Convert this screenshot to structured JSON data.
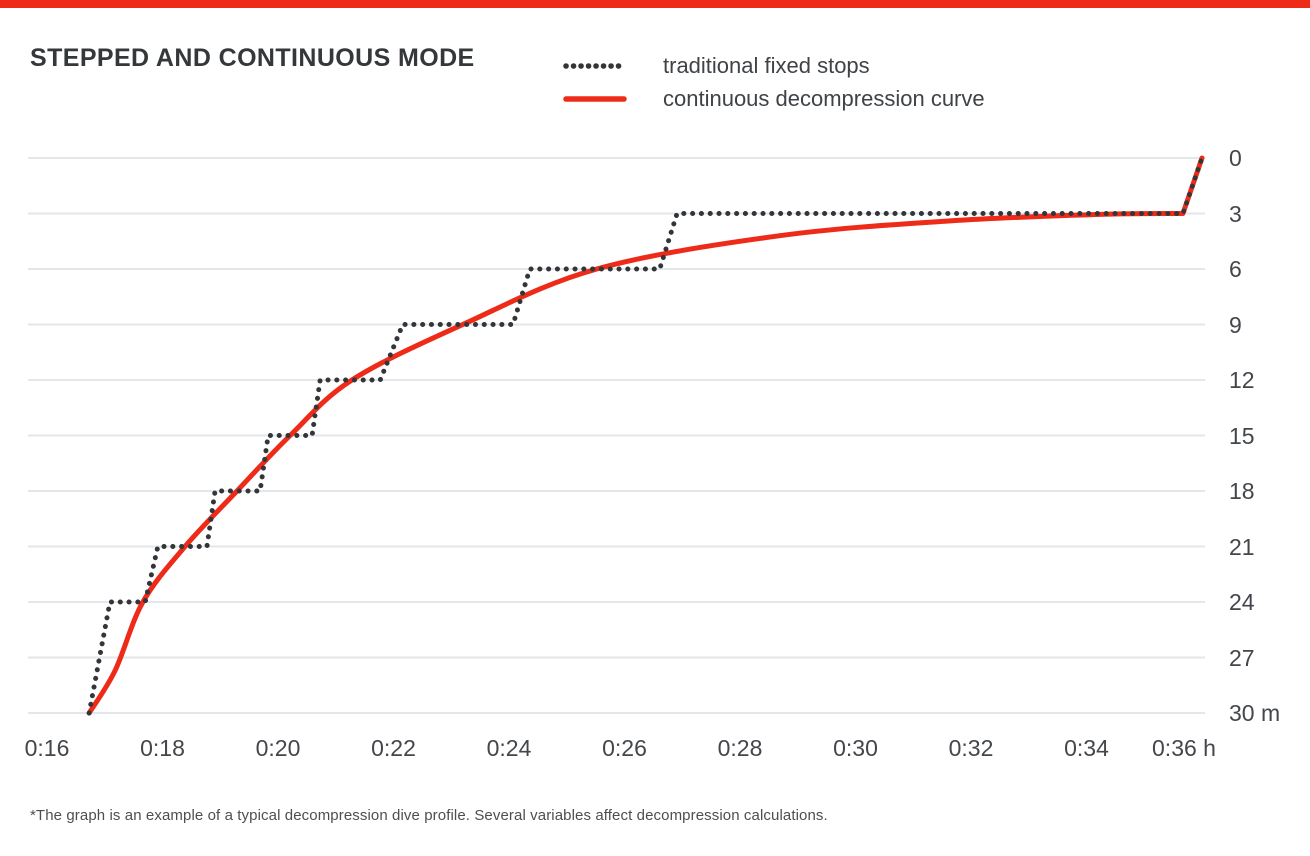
{
  "page": {
    "title": "STEPPED AND CONTINUOUS MODE",
    "footnote": "*The graph is an example of a typical decompression dive profile. Several variables affect decompression calculations.",
    "accent_color": "#ee2b18"
  },
  "legend": [
    {
      "label": "traditional fixed stops",
      "style": "dotted",
      "color": "#333639"
    },
    {
      "label": "continuous decompression curve",
      "style": "solid",
      "color": "#ee2b18"
    }
  ],
  "chart_data": {
    "type": "line",
    "title": "STEPPED AND CONTINUOUS MODE",
    "xlabel": "",
    "ylabel": "",
    "x_unit": "h",
    "y_unit": "m",
    "y_axis_reversed": true,
    "grid": "horizontal",
    "grid_color": "#e3e6ea",
    "legend_position": "top",
    "xlim": [
      15.671,
      36.052
    ],
    "ylim": [
      0,
      30
    ],
    "x_ticks": [
      16,
      18,
      20,
      22,
      24,
      26,
      28,
      30,
      32,
      34,
      36
    ],
    "x_tick_labels": [
      "0:16",
      "0:18",
      "0:20",
      "0:22",
      "0:24",
      "0:26",
      "0:28",
      "0:30",
      "0:32",
      "0:34",
      "0:36 h"
    ],
    "y_ticks": [
      0,
      3,
      6,
      9,
      12,
      15,
      18,
      21,
      24,
      27,
      30
    ],
    "y_tick_labels": [
      "0",
      "3",
      "6",
      "9",
      "12",
      "15",
      "18",
      "21",
      "24",
      "27",
      "30 m"
    ],
    "series": [
      {
        "name": "traditional fixed stops",
        "style": "dotted",
        "color": "#333639",
        "smooth": false,
        "points": [
          [
            16.73,
            30
          ],
          [
            17.09,
            24
          ],
          [
            17.7,
            24
          ],
          [
            17.92,
            21
          ],
          [
            18.77,
            21
          ],
          [
            18.91,
            18
          ],
          [
            19.69,
            18
          ],
          [
            19.83,
            15
          ],
          [
            20.59,
            15
          ],
          [
            20.73,
            12
          ],
          [
            21.77,
            12
          ],
          [
            22.16,
            9
          ],
          [
            24.07,
            9
          ],
          [
            24.36,
            6
          ],
          [
            26.61,
            6
          ],
          [
            26.91,
            3
          ],
          [
            35.67,
            3
          ],
          [
            36.0,
            0
          ]
        ]
      },
      {
        "name": "continuous decompression curve",
        "style": "solid",
        "color": "#ee2b18",
        "smooth": true,
        "points": [
          [
            16.73,
            30
          ],
          [
            17.18,
            27.7
          ],
          [
            17.66,
            24
          ],
          [
            18.39,
            21
          ],
          [
            19.29,
            18
          ],
          [
            20.21,
            15
          ],
          [
            21.28,
            12
          ],
          [
            23.2,
            9
          ],
          [
            25.52,
            6
          ],
          [
            28.69,
            4.2
          ],
          [
            31.64,
            3.4
          ],
          [
            34.23,
            3.05
          ],
          [
            35.67,
            3.0
          ],
          [
            36.0,
            0
          ]
        ]
      }
    ]
  }
}
